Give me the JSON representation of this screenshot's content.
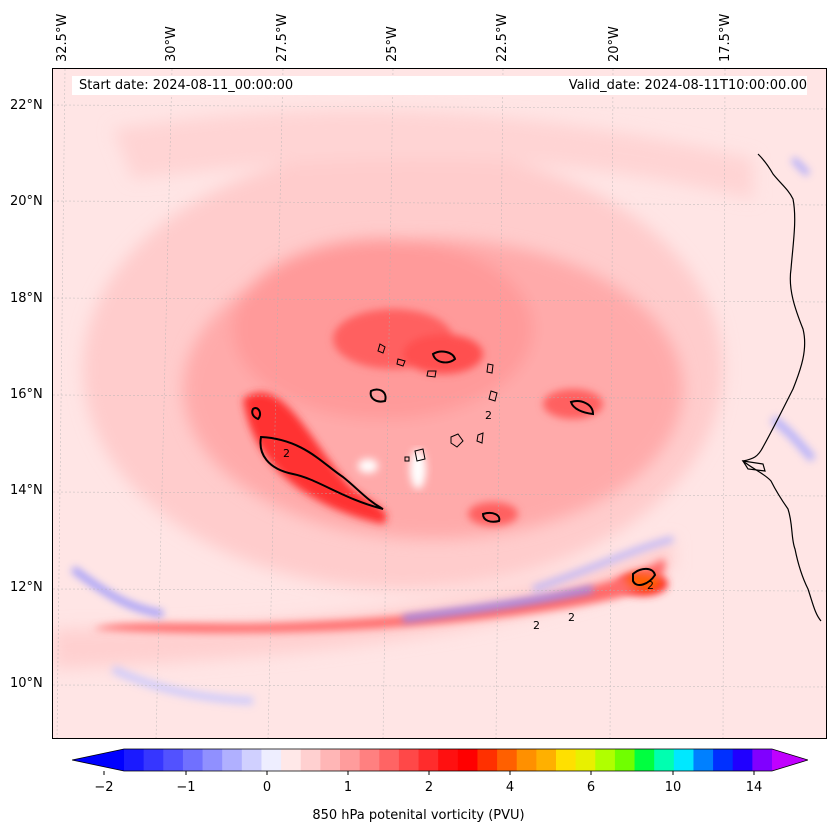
{
  "header": {
    "start_date": "Start date: 2024-08-11_00:00:00",
    "valid_date": "Valid_date: 2024-08-11T10:00:00.00"
  },
  "longitude_labels": [
    "32.5°W",
    "30°W",
    "27.5°W",
    "25°W",
    "22.5°W",
    "20°W",
    "17.5°W"
  ],
  "latitude_labels": [
    "22°N",
    "20°N",
    "18°N",
    "16°N",
    "14°N",
    "12°N",
    "10°N"
  ],
  "colorbar": {
    "title": "850 hPa potenital vorticity (PVU)",
    "tick_labels": [
      "−2",
      "−1",
      "0",
      "1",
      "2",
      "4",
      "6",
      "10",
      "14"
    ],
    "colors": [
      "#1a1aff",
      "#3636ff",
      "#5252ff",
      "#7070ff",
      "#9090ff",
      "#b0b0ff",
      "#d0d0ff",
      "#eeeeff",
      "#ffe8e8",
      "#ffd0d0",
      "#ffb6b6",
      "#ff9c9c",
      "#ff8080",
      "#ff6464",
      "#ff4848",
      "#ff2c2c",
      "#ff1010",
      "#ff0000",
      "#ff3000",
      "#ff6000",
      "#ff9000",
      "#ffb000",
      "#ffe000",
      "#e8f000",
      "#b0ff00",
      "#70ff00",
      "#00ff40",
      "#00ffb0",
      "#00e8ff",
      "#0080ff",
      "#0030ff",
      "#2000ff",
      "#8000ff"
    ],
    "under_color": "#0000ff",
    "over_color": "#c000ff"
  },
  "contour_label": "2"
}
